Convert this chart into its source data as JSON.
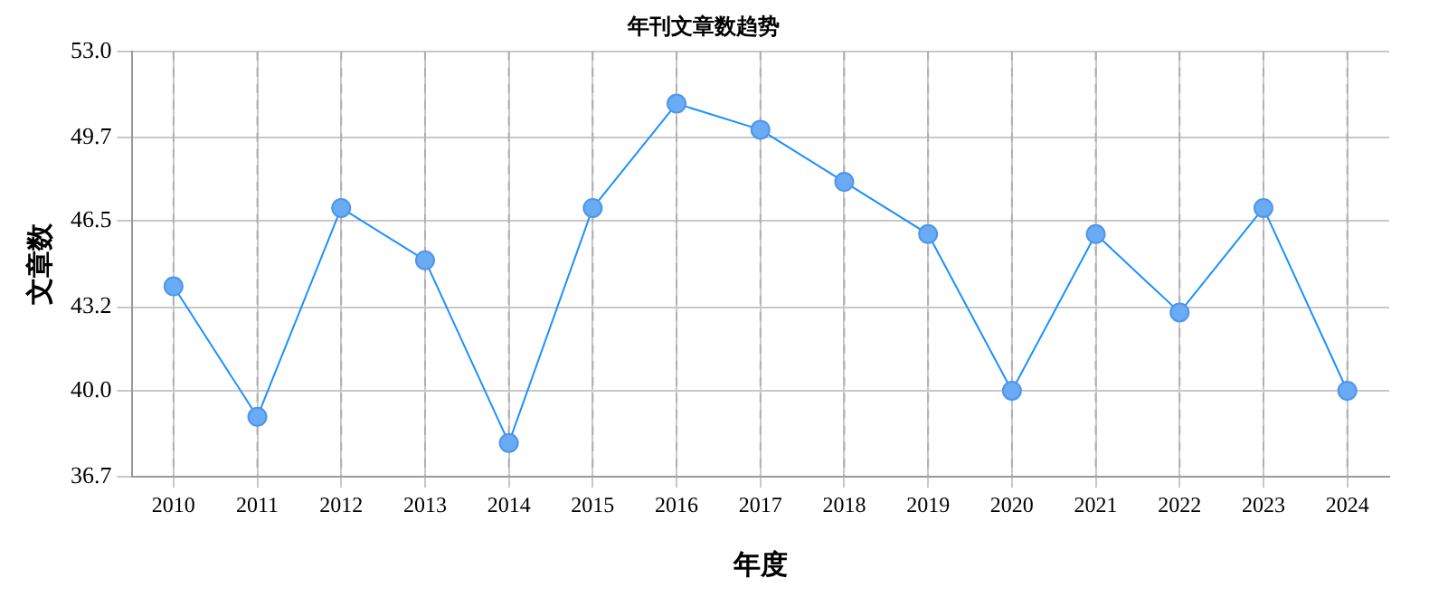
{
  "chart_data": {
    "type": "line",
    "title": "年刊文章数趋势",
    "xlabel": "年度",
    "ylabel": "文章数",
    "categories": [
      "2010",
      "2011",
      "2012",
      "2013",
      "2014",
      "2015",
      "2016",
      "2017",
      "2018",
      "2019",
      "2020",
      "2021",
      "2022",
      "2023",
      "2024"
    ],
    "series": [
      {
        "color": "#1e90ff",
        "values": [
          44,
          39,
          47,
          45,
          38,
          47,
          51,
          50,
          48,
          46,
          40,
          46,
          43,
          47,
          40
        ]
      }
    ],
    "ylim": [
      36.7,
      53
    ],
    "yticks": [
      36.7,
      {
        "value": 40,
        "label": "40.0"
      },
      43.2,
      46.5,
      49.7,
      {
        "value": 53,
        "label": "53.0"
      }
    ],
    "grid": true,
    "marker": "circle",
    "line_style": "solid",
    "legend": false
  }
}
